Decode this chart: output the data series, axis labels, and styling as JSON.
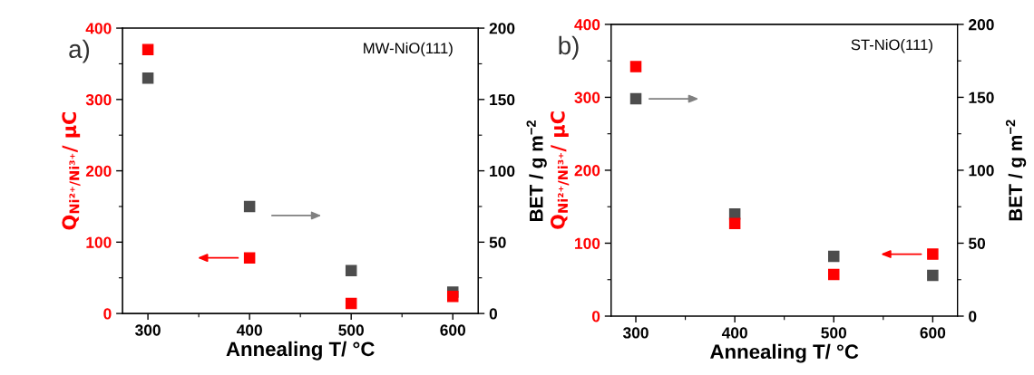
{
  "chart_data": [
    {
      "type": "scatter",
      "x": [
        300,
        400,
        500,
        600
      ],
      "xlabel": "Annealing T/ °C",
      "ylabel": "Q$_{Ni²⁺/Ni³⁺}$/ µC",
      "y2label": "BET / g m$^{−2}$",
      "annotations": [
        "a)",
        "MW-NiO(111)"
      ],
      "marker": "square",
      "legend": false,
      "grid": false,
      "xlim": [
        275,
        625
      ],
      "xticks": [
        300,
        {
          "value": 350,
          "label": null
        },
        400,
        {
          "value": 450,
          "label": null
        },
        500,
        {
          "value": 550,
          "label": null
        },
        600
      ],
      "ylim": [
        0,
        400
      ],
      "yticks": [
        0,
        {
          "value": 50,
          "label": null
        },
        100,
        {
          "value": 150,
          "label": null
        },
        200,
        {
          "value": 250,
          "label": null
        },
        300,
        {
          "value": 350,
          "label": null
        },
        400
      ],
      "y2lim": [
        0,
        200
      ],
      "y2ticks": [
        0,
        {
          "value": 25,
          "label": null
        },
        50,
        {
          "value": 75,
          "label": null
        },
        100,
        {
          "value": 125,
          "label": null
        },
        150,
        {
          "value": 175,
          "label": null
        },
        200
      ],
      "series": [
        {
          "color": "#ff0000",
          "values": [
            370,
            78,
            14,
            24
          ]
        },
        {
          "color": "#4d4d4d",
          "values": [
            165,
            75,
            30,
            15
          ],
          "axis": "y2"
        }
      ]
    },
    {
      "type": "scatter",
      "x": [
        300,
        400,
        500,
        600
      ],
      "xlabel": "Annealing T/ °C",
      "ylabel": "Q$_{Ni²⁺/Ni³⁺}$/ µC",
      "y2label": "BET / g m$^{−2}$",
      "annotations": [
        "b)",
        "ST-NiO(111)"
      ],
      "marker": "square",
      "legend": false,
      "grid": false,
      "xlim": [
        275,
        625
      ],
      "xticks": [
        300,
        {
          "value": 350,
          "label": null
        },
        400,
        {
          "value": 450,
          "label": null
        },
        500,
        {
          "value": 550,
          "label": null
        },
        600
      ],
      "ylim": [
        0,
        400
      ],
      "yticks": [
        0,
        {
          "value": 50,
          "label": null
        },
        100,
        {
          "value": 150,
          "label": null
        },
        200,
        {
          "value": 250,
          "label": null
        },
        300,
        {
          "value": 350,
          "label": null
        },
        400
      ],
      "y2lim": [
        0,
        200
      ],
      "y2ticks": [
        0,
        {
          "value": 25,
          "label": null
        },
        50,
        {
          "value": 75,
          "label": null
        },
        100,
        {
          "value": 125,
          "label": null
        },
        150,
        {
          "value": 175,
          "label": null
        },
        200
      ],
      "series": [
        {
          "color": "#ff0000",
          "values": [
            342,
            127,
            57,
            85
          ]
        },
        {
          "color": "#4d4d4d",
          "values": [
            149,
            70,
            41,
            28
          ],
          "axis": "y2"
        }
      ]
    }
  ]
}
